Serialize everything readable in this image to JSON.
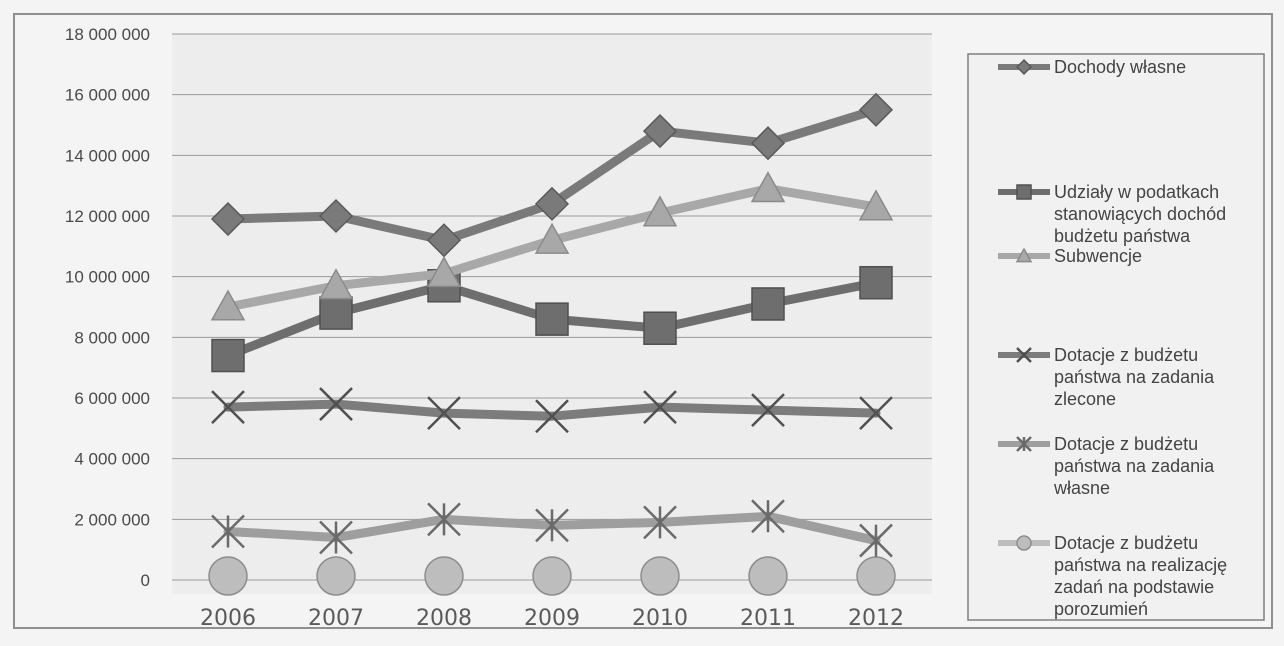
{
  "chart_data": {
    "type": "line",
    "categories": [
      "2006",
      "2007",
      "2008",
      "2009",
      "2010",
      "2011",
      "2012"
    ],
    "ylim": [
      0,
      18000000
    ],
    "yticks": [
      "0",
      "2 000 000",
      "4 000 000",
      "6 000 000",
      "8 000 000",
      "10 000 000",
      "12 000 000",
      "14 000 000",
      "16 000 000",
      "18 000 000"
    ],
    "grid": true,
    "legend_position": "right",
    "series": [
      {
        "name": "Dochody własne",
        "color": "#7a7a7a",
        "marker": "diamond",
        "values": [
          11900000,
          12000000,
          11200000,
          12400000,
          14800000,
          14400000,
          15500000
        ]
      },
      {
        "name": "Udziały w podatkach stanowiących dochód budżetu państwa",
        "color": "#6e6e6e",
        "marker": "square",
        "values": [
          7400000,
          8800000,
          9700000,
          8600000,
          8300000,
          9100000,
          9800000
        ]
      },
      {
        "name": "Subwencje",
        "color": "#a8a8a8",
        "marker": "triangle",
        "values": [
          9000000,
          9700000,
          10100000,
          11200000,
          12100000,
          12900000,
          12300000
        ]
      },
      {
        "name": "Dotacje z budżetu państwa na zadania zlecone",
        "color": "#7c7c7c",
        "marker": "x",
        "values": [
          5700000,
          5800000,
          5500000,
          5400000,
          5700000,
          5600000,
          5500000
        ]
      },
      {
        "name": "Dotacje z budżetu państwa na zadania własne",
        "color": "#9e9e9e",
        "marker": "star",
        "values": [
          1600000,
          1400000,
          2000000,
          1800000,
          1900000,
          2100000,
          1300000
        ]
      },
      {
        "name": "Dotacje z budżetu państwa na realizację zadań na podstawie porozumień",
        "color": "#bdbdbd",
        "marker": "circle",
        "values": [
          0,
          0,
          0,
          0,
          0,
          0,
          0
        ]
      }
    ]
  }
}
